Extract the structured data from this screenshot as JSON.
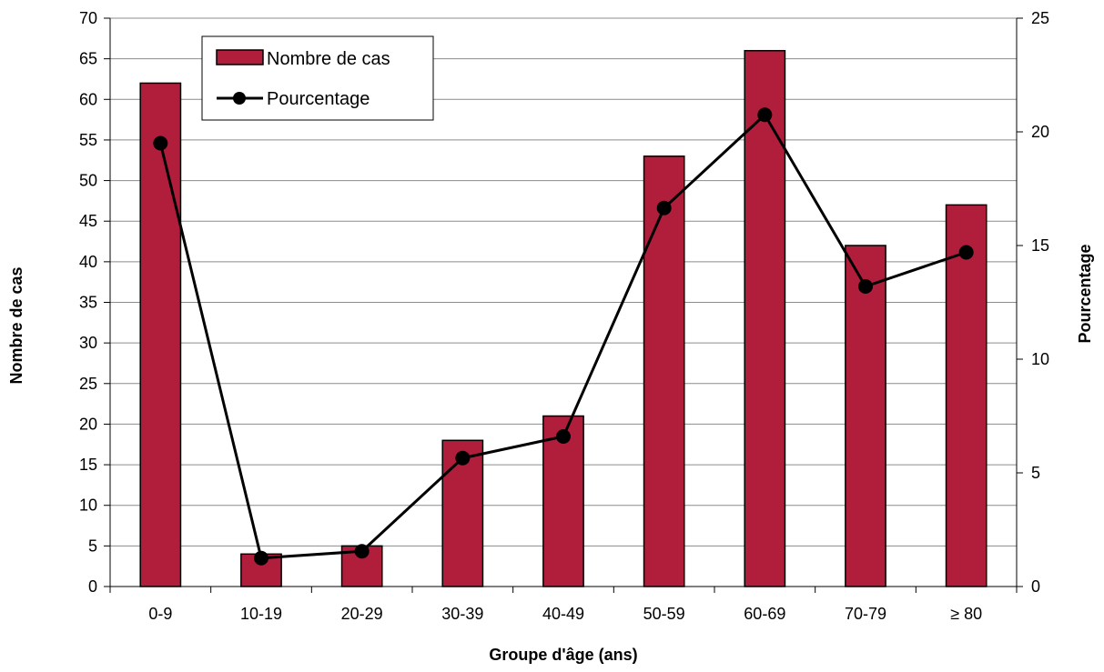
{
  "chart_data": {
    "type": "bar",
    "categories": [
      "0-9",
      "10-19",
      "20-29",
      "30-39",
      "40-49",
      "50-59",
      "60-69",
      "70-79",
      "≥ 80"
    ],
    "series": [
      {
        "name": "Nombre de cas",
        "type": "bar",
        "axis": "left",
        "color": "#b11e3b",
        "values": [
          62,
          4,
          5,
          18,
          21,
          53,
          66,
          42,
          47
        ]
      },
      {
        "name": "Pourcentage",
        "type": "line",
        "axis": "right",
        "color": "#000000",
        "values": [
          19.5,
          1.25,
          1.55,
          5.65,
          6.6,
          16.65,
          20.75,
          13.2,
          14.7
        ]
      }
    ],
    "xlabel": "Groupe d'âge (ans)",
    "ylabel": "Nombre de cas",
    "y2label": "Pourcentage",
    "ylim": [
      0,
      70
    ],
    "y2lim": [
      0,
      25
    ],
    "yticks": [
      0,
      5,
      10,
      15,
      20,
      25,
      30,
      35,
      40,
      45,
      50,
      55,
      60,
      65,
      70
    ],
    "y2ticks": [
      0,
      5,
      10,
      15,
      20,
      25
    ],
    "grid": true,
    "legend": "top-left"
  }
}
